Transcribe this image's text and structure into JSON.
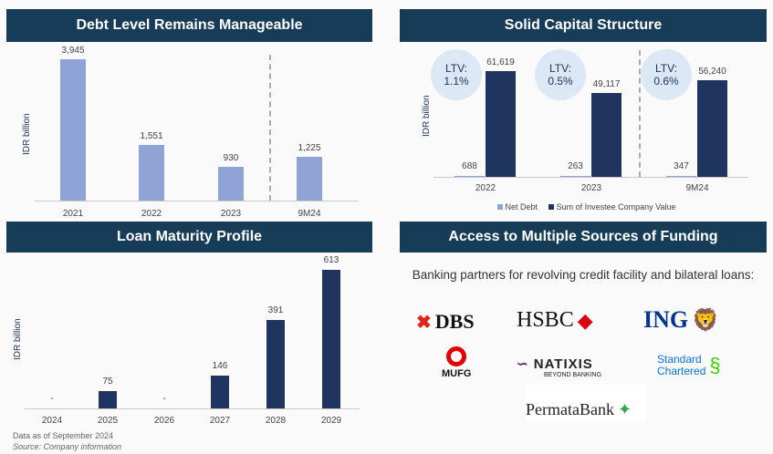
{
  "colors": {
    "header": "#163c57",
    "light_bar": "#8fa3d6",
    "dark_bar": "#1f3560"
  },
  "chart_data": [
    {
      "type": "bar",
      "title": "Debt Level Remains Manageable",
      "ylabel": "IDR billion",
      "categories": [
        "2021",
        "2022",
        "2023",
        "9M24"
      ],
      "values": [
        3945,
        1551,
        930,
        1225
      ],
      "labels": [
        "3,945",
        "1,551",
        "930",
        "1,225"
      ]
    },
    {
      "type": "bar",
      "title": "Solid Capital Structure",
      "ylabel": "IDR billion",
      "categories": [
        "2022",
        "2023",
        "9M24"
      ],
      "series": [
        {
          "name": "Net Debt",
          "values": [
            688,
            263,
            347
          ],
          "labels": [
            "688",
            "263",
            "347"
          ]
        },
        {
          "name": "Sum of Investee Company Value",
          "values": [
            61619,
            49117,
            56240
          ],
          "labels": [
            "61,619",
            "49,117",
            "56,240"
          ]
        }
      ],
      "annotations": [
        {
          "line1": "LTV:",
          "line2": "1.1%"
        },
        {
          "line1": "LTV:",
          "line2": "0.5%"
        },
        {
          "line1": "LTV:",
          "line2": "0.6%"
        }
      ]
    },
    {
      "type": "bar",
      "title": "Loan Maturity Profile",
      "ylabel": "IDR billion",
      "categories": [
        "2024",
        "2025",
        "2026",
        "2027",
        "2028",
        "2029"
      ],
      "values": [
        0,
        75,
        0,
        146,
        391,
        613
      ],
      "labels": [
        "-",
        "75",
        "-",
        "146",
        "391",
        "613"
      ]
    }
  ],
  "notes": {
    "data_as_of": "Data as of September 2024",
    "source": "Source: Company information"
  },
  "funding": {
    "title": "Access to Multiple Sources of Funding",
    "subtitle": "Banking partners for revolving credit facility and bilateral loans:",
    "logos": {
      "dbs": "DBS",
      "hsbc": "HSBC",
      "ing": "ING",
      "mufg": "MUFG",
      "natixis": "NATIXIS",
      "natixis_sub": "BEYOND BANKING",
      "sc1": "Standard",
      "sc2": "Chartered",
      "permata": "PermataBank"
    }
  }
}
